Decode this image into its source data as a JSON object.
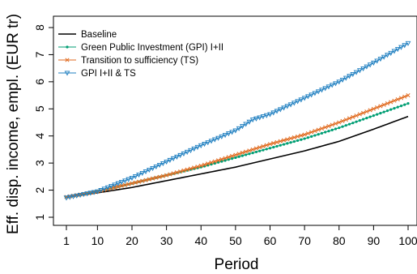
{
  "chart_data": {
    "type": "line",
    "title": "",
    "xlabel": "Period",
    "ylabel": "Eff. disp. income, empl. (EUR tr)",
    "xlim": [
      1,
      100
    ],
    "ylim": [
      1,
      8
    ],
    "x_ticks": [
      "1",
      "10",
      "20",
      "30",
      "40",
      "50",
      "60",
      "70",
      "80",
      "90",
      "100"
    ],
    "y_ticks": [
      "1",
      "2",
      "3",
      "4",
      "5",
      "6",
      "7",
      "8"
    ],
    "grid": false,
    "legend_position": "top-left",
    "series": [
      {
        "name": "Baseline",
        "color": "#000000",
        "marker": "none",
        "points": [
          [
            1,
            1.75
          ],
          [
            10,
            1.9
          ],
          [
            20,
            2.1
          ],
          [
            30,
            2.35
          ],
          [
            40,
            2.6
          ],
          [
            50,
            2.85
          ],
          [
            60,
            3.15
          ],
          [
            70,
            3.45
          ],
          [
            80,
            3.8
          ],
          [
            90,
            4.25
          ],
          [
            100,
            4.72
          ]
        ]
      },
      {
        "name": "Green Public Investment (GPI) I+II",
        "color": "#009E73",
        "marker": "circle",
        "points": [
          [
            1,
            1.75
          ],
          [
            10,
            1.95
          ],
          [
            20,
            2.25
          ],
          [
            30,
            2.55
          ],
          [
            40,
            2.85
          ],
          [
            50,
            3.2
          ],
          [
            60,
            3.55
          ],
          [
            70,
            3.9
          ],
          [
            80,
            4.3
          ],
          [
            90,
            4.75
          ],
          [
            100,
            5.2
          ]
        ]
      },
      {
        "name": "Transition to sufficiency (TS)",
        "color": "#E06A1F",
        "marker": "x",
        "points": [
          [
            1,
            1.75
          ],
          [
            10,
            1.95
          ],
          [
            20,
            2.25
          ],
          [
            30,
            2.55
          ],
          [
            40,
            2.9
          ],
          [
            50,
            3.3
          ],
          [
            55,
            3.5
          ],
          [
            60,
            3.7
          ],
          [
            70,
            4.05
          ],
          [
            80,
            4.5
          ],
          [
            90,
            5.0
          ],
          [
            100,
            5.5
          ]
        ]
      },
      {
        "name": "GPI I+II & TS",
        "color": "#1F7FC0",
        "marker": "triangle-down",
        "points": [
          [
            1,
            1.72
          ],
          [
            10,
            1.95
          ],
          [
            20,
            2.45
          ],
          [
            30,
            3.05
          ],
          [
            40,
            3.65
          ],
          [
            50,
            4.2
          ],
          [
            55,
            4.6
          ],
          [
            60,
            4.8
          ],
          [
            70,
            5.4
          ],
          [
            80,
            6.0
          ],
          [
            90,
            6.7
          ],
          [
            100,
            7.42
          ]
        ]
      }
    ]
  }
}
